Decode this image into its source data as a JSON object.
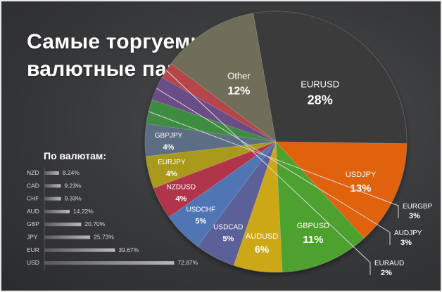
{
  "title_line1": "Самые торгуемые",
  "title_line2": "валютные пары",
  "chart_data": [
    {
      "type": "pie",
      "unit": "%",
      "slices": [
        {
          "label": "EURUSD",
          "value": 28,
          "display": "28%",
          "color": "#3a3a3b"
        },
        {
          "label": "USDJPY",
          "value": 13,
          "display": "13%",
          "color": "#e0620f"
        },
        {
          "label": "GBPUSD",
          "value": 11,
          "display": "11%",
          "color": "#4da12d"
        },
        {
          "label": "AUDUSD",
          "value": 6,
          "display": "6%",
          "color": "#cca714"
        },
        {
          "label": "USDCAD",
          "value": 5,
          "display": "5%",
          "color": "#5b6098"
        },
        {
          "label": "USDCHF",
          "value": 5,
          "display": "5%",
          "color": "#4f75b3"
        },
        {
          "label": "NZDUSD",
          "value": 4,
          "display": "4%",
          "color": "#b0354c"
        },
        {
          "label": "EURJPY",
          "value": 4,
          "display": "4%",
          "color": "#aa9a1c"
        },
        {
          "label": "GBPJPY",
          "value": 4,
          "display": "4%",
          "color": "#5b6d84"
        },
        {
          "label": "EURGBP",
          "value": 3,
          "display": "3%",
          "color": "#3e8c3f"
        },
        {
          "label": "AUDJPY",
          "value": 3,
          "display": "3%",
          "color": "#6a4e86"
        },
        {
          "label": "EURAUD",
          "value": 2,
          "display": "2%",
          "color": "#b5454a"
        },
        {
          "label": "Other",
          "value": 12,
          "display": "12%",
          "color": "#6f6d58"
        }
      ]
    },
    {
      "type": "bar",
      "orientation": "horizontal",
      "title": "По валютам:",
      "categories": [
        "NZD",
        "CAD",
        "CHF",
        "AUD",
        "GBP",
        "JPY",
        "EUR",
        "USD"
      ],
      "values": [
        8.24,
        9.23,
        9.33,
        14.22,
        20.7,
        25.73,
        39.67,
        72.87
      ],
      "labels": [
        "8.24%",
        "9.23%",
        "9.33%",
        "14.22%",
        "20.70%",
        "25.73%",
        "39.67%",
        "72.87%"
      ],
      "xlim": [
        0,
        80
      ]
    }
  ]
}
